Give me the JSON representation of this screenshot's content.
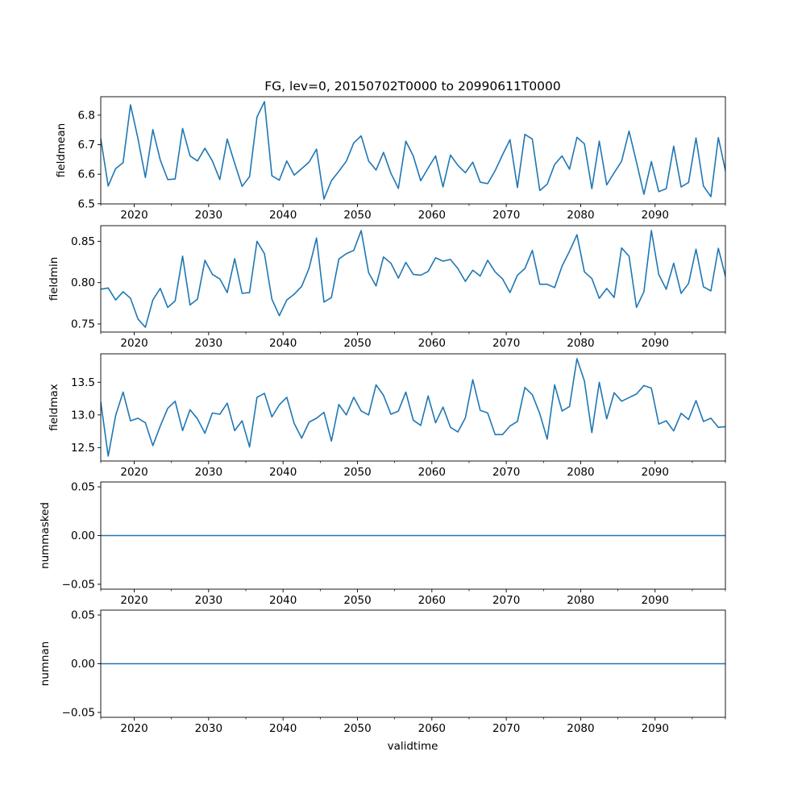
{
  "chart_data": {
    "type": "line",
    "title": "FG, lev=0, 20150702T0000 to 20990611T0000",
    "xlabel": "validtime",
    "line_color": "#1f77b4",
    "x_start": 2015.5,
    "x_step": 1,
    "xlim": [
      2015.5,
      2099.45
    ],
    "xticks": [
      2020,
      2030,
      2040,
      2050,
      2060,
      2070,
      2080,
      2090
    ],
    "xtick_labels": [
      "2020",
      "2030",
      "2040",
      "2050",
      "2060",
      "2070",
      "2080",
      "2090"
    ],
    "grid": false,
    "panels": [
      {
        "ylabel": "fieldmean",
        "ylim": [
          6.4995,
          6.8625
        ],
        "yticks": [
          6.5,
          6.6,
          6.7,
          6.8
        ],
        "ytick_labels": [
          "6.5",
          "6.6",
          "6.7",
          "6.8"
        ],
        "values": [
          6.721,
          6.56,
          6.619,
          6.639,
          6.835,
          6.721,
          6.589,
          6.751,
          6.648,
          6.582,
          6.584,
          6.755,
          6.662,
          6.645,
          6.688,
          6.645,
          6.582,
          6.719,
          6.637,
          6.559,
          6.592,
          6.794,
          6.846,
          6.595,
          6.58,
          6.645,
          6.597,
          6.619,
          6.641,
          6.685,
          6.516,
          6.578,
          6.61,
          6.644,
          6.706,
          6.73,
          6.645,
          6.614,
          6.674,
          6.603,
          6.552,
          6.712,
          6.662,
          6.578,
          6.621,
          6.662,
          6.557,
          6.665,
          6.63,
          6.605,
          6.641,
          6.573,
          6.568,
          6.612,
          6.666,
          6.717,
          6.555,
          6.735,
          6.719,
          6.545,
          6.566,
          6.633,
          6.662,
          6.617,
          6.725,
          6.703,
          6.551,
          6.712,
          6.564,
          6.605,
          6.644,
          6.746,
          6.641,
          6.532,
          6.643,
          6.541,
          6.551,
          6.695,
          6.557,
          6.572,
          6.723,
          6.56,
          6.524,
          6.724,
          6.607
        ]
      },
      {
        "ylabel": "fieldmin",
        "ylim": [
          0.7402,
          0.8689
        ],
        "yticks": [
          0.75,
          0.8,
          0.85
        ],
        "ytick_labels": [
          "0.75",
          "0.80",
          "0.85"
        ],
        "values": [
          0.792,
          0.7935,
          0.779,
          0.789,
          0.781,
          0.756,
          0.746,
          0.779,
          0.793,
          0.77,
          0.778,
          0.832,
          0.773,
          0.78,
          0.827,
          0.81,
          0.8045,
          0.788,
          0.829,
          0.787,
          0.788,
          0.85,
          0.835,
          0.78,
          0.76,
          0.779,
          0.786,
          0.7955,
          0.8175,
          0.854,
          0.7765,
          0.782,
          0.8285,
          0.835,
          0.839,
          0.863,
          0.812,
          0.796,
          0.831,
          0.8235,
          0.8055,
          0.8245,
          0.81,
          0.809,
          0.8135,
          0.83,
          0.826,
          0.828,
          0.817,
          0.8015,
          0.815,
          0.808,
          0.827,
          0.813,
          0.8045,
          0.788,
          0.809,
          0.817,
          0.839,
          0.798,
          0.798,
          0.794,
          0.82,
          0.838,
          0.858,
          0.813,
          0.805,
          0.781,
          0.793,
          0.782,
          0.842,
          0.832,
          0.77,
          0.789,
          0.863,
          0.8097,
          0.792,
          0.8235,
          0.787,
          0.799,
          0.8405,
          0.795,
          0.79,
          0.8415,
          0.806
        ]
      },
      {
        "ylabel": "fieldmax",
        "ylim": [
          12.295,
          13.935
        ],
        "yticks": [
          12.5,
          13.0,
          13.5
        ],
        "ytick_labels": [
          "12.5",
          "13.0",
          "13.5"
        ],
        "values": [
          13.2,
          12.37,
          12.99,
          13.35,
          12.91,
          12.95,
          12.88,
          12.53,
          12.83,
          13.1,
          13.21,
          12.76,
          13.08,
          12.94,
          12.72,
          13.03,
          13.01,
          13.18,
          12.76,
          12.91,
          12.51,
          13.27,
          13.33,
          12.97,
          13.155,
          13.27,
          12.87,
          12.645,
          12.89,
          12.95,
          13.04,
          12.6,
          13.16,
          13.0,
          13.27,
          13.06,
          13.0,
          13.46,
          13.3,
          13.01,
          13.06,
          13.35,
          12.92,
          12.84,
          13.29,
          12.88,
          13.12,
          12.81,
          12.74,
          12.955,
          13.54,
          13.07,
          13.03,
          12.7,
          12.7,
          12.83,
          12.9,
          13.42,
          13.31,
          13.02,
          12.63,
          13.46,
          13.06,
          13.13,
          13.86,
          13.52,
          12.73,
          13.5,
          12.94,
          13.34,
          13.21,
          13.265,
          13.32,
          13.45,
          13.41,
          12.86,
          12.91,
          12.755,
          13.025,
          12.93,
          13.22,
          12.9,
          12.95,
          12.81,
          12.82
        ]
      },
      {
        "ylabel": "nummasked",
        "ylim": [
          -0.055,
          0.055
        ],
        "yticks": [
          -0.05,
          0.0,
          0.05
        ],
        "ytick_labels": [
          "−0.05",
          "0.00",
          "0.05"
        ],
        "values": [
          0,
          0,
          0,
          0,
          0,
          0,
          0,
          0,
          0,
          0,
          0,
          0,
          0,
          0,
          0,
          0,
          0,
          0,
          0,
          0,
          0,
          0,
          0,
          0,
          0,
          0,
          0,
          0,
          0,
          0,
          0,
          0,
          0,
          0,
          0,
          0,
          0,
          0,
          0,
          0,
          0,
          0,
          0,
          0,
          0,
          0,
          0,
          0,
          0,
          0,
          0,
          0,
          0,
          0,
          0,
          0,
          0,
          0,
          0,
          0,
          0,
          0,
          0,
          0,
          0,
          0,
          0,
          0,
          0,
          0,
          0,
          0,
          0,
          0,
          0,
          0,
          0,
          0,
          0,
          0,
          0,
          0,
          0,
          0,
          0
        ]
      },
      {
        "ylabel": "numnan",
        "ylim": [
          -0.055,
          0.055
        ],
        "yticks": [
          -0.05,
          0.0,
          0.05
        ],
        "ytick_labels": [
          "−0.05",
          "0.00",
          "0.05"
        ],
        "values": [
          0,
          0,
          0,
          0,
          0,
          0,
          0,
          0,
          0,
          0,
          0,
          0,
          0,
          0,
          0,
          0,
          0,
          0,
          0,
          0,
          0,
          0,
          0,
          0,
          0,
          0,
          0,
          0,
          0,
          0,
          0,
          0,
          0,
          0,
          0,
          0,
          0,
          0,
          0,
          0,
          0,
          0,
          0,
          0,
          0,
          0,
          0,
          0,
          0,
          0,
          0,
          0,
          0,
          0,
          0,
          0,
          0,
          0,
          0,
          0,
          0,
          0,
          0,
          0,
          0,
          0,
          0,
          0,
          0,
          0,
          0,
          0,
          0,
          0,
          0,
          0,
          0,
          0,
          0,
          0,
          0,
          0,
          0,
          0,
          0,
          0
        ]
      }
    ]
  }
}
